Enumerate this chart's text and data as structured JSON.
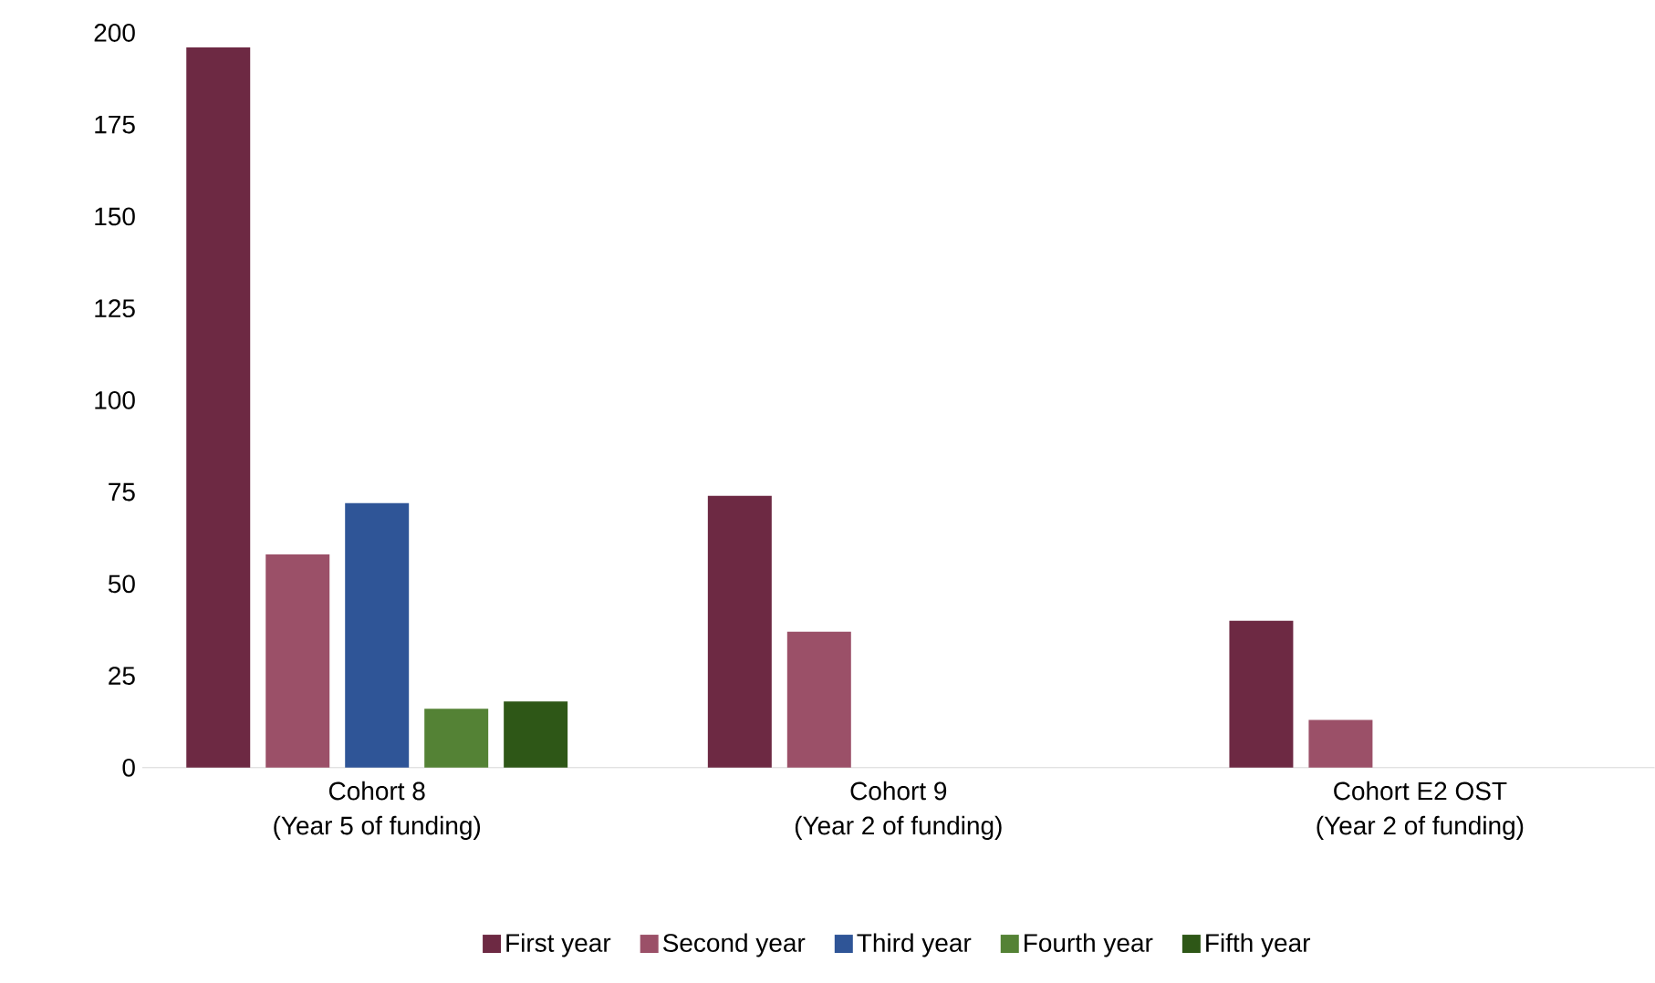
{
  "chart_data": {
    "type": "bar",
    "categories": [
      "Cohort 8\n(Year 5 of funding)",
      "Cohort 9\n(Year 2 of funding)",
      "Cohort E2 OST\n(Year 2 of funding)"
    ],
    "series": [
      {
        "name": "First year",
        "color": "#6d2943",
        "values": [
          196,
          74,
          40
        ]
      },
      {
        "name": "Second year",
        "color": "#9b5068",
        "values": [
          58,
          37,
          13
        ]
      },
      {
        "name": "Third year",
        "color": "#2f5597",
        "values": [
          72,
          null,
          null
        ]
      },
      {
        "name": "Fourth year",
        "color": "#548235",
        "values": [
          16,
          null,
          null
        ]
      },
      {
        "name": "Fifth year",
        "color": "#2e5717",
        "values": [
          18,
          null,
          null
        ]
      }
    ],
    "ylim": [
      0,
      200
    ],
    "yticks": [
      0,
      25,
      50,
      75,
      100,
      125,
      150,
      175,
      200
    ],
    "grid": false,
    "legend": "bottom"
  }
}
